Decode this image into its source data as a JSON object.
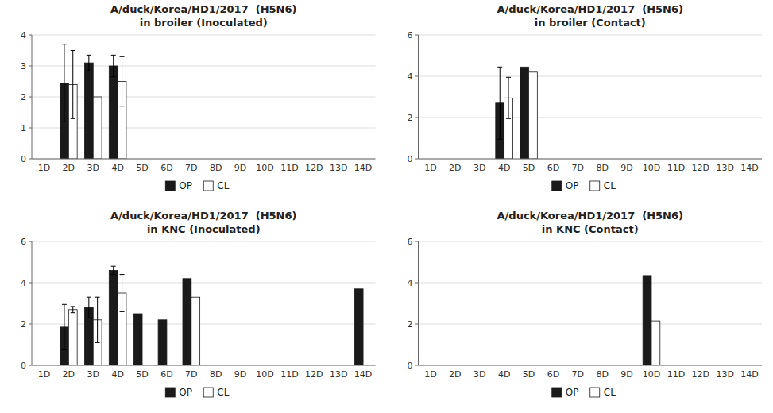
{
  "chart_data": [
    {
      "type": "bar",
      "title": "A/duck/Korea/HD1/2017  (H5N6)",
      "subtitle": "in broiler (Inoculated)",
      "categories": [
        "1D",
        "2D",
        "3D",
        "4D",
        "5D",
        "6D",
        "7D",
        "8D",
        "9D",
        "10D",
        "11D",
        "12D",
        "13D",
        "14D"
      ],
      "series": [
        {
          "name": "OP",
          "color": "#1a1a1a",
          "values": [
            0,
            2.45,
            3.1,
            3.0,
            0,
            0,
            0,
            0,
            0,
            0,
            0,
            0,
            0,
            0
          ],
          "errors": [
            0,
            1.25,
            0.25,
            0.35,
            0,
            0,
            0,
            0,
            0,
            0,
            0,
            0,
            0,
            0
          ]
        },
        {
          "name": "CL",
          "color": "#ffffff",
          "values": [
            0,
            2.4,
            2.0,
            2.5,
            0,
            0,
            0,
            0,
            0,
            0,
            0,
            0,
            0,
            0
          ],
          "errors": [
            0,
            1.1,
            0.0,
            0.8,
            0,
            0,
            0,
            0,
            0,
            0,
            0,
            0,
            0,
            0
          ]
        }
      ],
      "ylim": [
        0,
        4
      ],
      "yticks": [
        0,
        1,
        2,
        3,
        4
      ],
      "grid": true,
      "legend": "bottom"
    },
    {
      "type": "bar",
      "title": "A/duck/Korea/HD1/2017  (H5N6)",
      "subtitle": "in broiler (Contact)",
      "categories": [
        "1D",
        "2D",
        "3D",
        "4D",
        "5D",
        "6D",
        "7D",
        "8D",
        "9D",
        "10D",
        "11D",
        "12D",
        "13D",
        "14D"
      ],
      "series": [
        {
          "name": "OP",
          "color": "#1a1a1a",
          "values": [
            0,
            0,
            0,
            2.7,
            4.45,
            0,
            0,
            0,
            0,
            0,
            0,
            0,
            0,
            0
          ],
          "errors": [
            0,
            0,
            0,
            1.75,
            0.0,
            0,
            0,
            0,
            0,
            0,
            0,
            0,
            0,
            0
          ]
        },
        {
          "name": "CL",
          "color": "#ffffff",
          "values": [
            0,
            0,
            0,
            2.95,
            4.2,
            0,
            0,
            0,
            0,
            0,
            0,
            0,
            0,
            0
          ],
          "errors": [
            0,
            0,
            0,
            1.0,
            0.0,
            0,
            0,
            0,
            0,
            0,
            0,
            0,
            0,
            0
          ]
        }
      ],
      "ylim": [
        0,
        6
      ],
      "yticks": [
        0,
        2,
        4,
        6
      ],
      "grid": true,
      "legend": "bottom"
    },
    {
      "type": "bar",
      "title": "A/duck/Korea/HD1/2017  (H5N6)",
      "subtitle": "in KNC (Inoculated)",
      "categories": [
        "1D",
        "2D",
        "3D",
        "4D",
        "5D",
        "6D",
        "7D",
        "8D",
        "9D",
        "10D",
        "11D",
        "12D",
        "13D",
        "14D"
      ],
      "series": [
        {
          "name": "OP",
          "color": "#1a1a1a",
          "values": [
            0,
            1.85,
            2.8,
            4.6,
            2.5,
            2.2,
            4.2,
            0,
            0,
            0,
            0,
            0,
            0,
            3.7
          ],
          "errors": [
            0,
            1.1,
            0.5,
            0.2,
            0,
            0,
            0,
            0,
            0,
            0,
            0,
            0,
            0,
            0
          ]
        },
        {
          "name": "CL",
          "color": "#ffffff",
          "values": [
            0,
            2.7,
            2.2,
            3.5,
            0,
            0,
            3.3,
            0,
            0,
            0,
            0,
            0,
            0,
            0
          ],
          "errors": [
            0,
            0.15,
            1.1,
            0.9,
            0,
            0,
            0,
            0,
            0,
            0,
            0,
            0,
            0,
            0
          ]
        }
      ],
      "ylim": [
        0,
        6
      ],
      "yticks": [
        0,
        2,
        4,
        6
      ],
      "grid": true,
      "legend": "bottom"
    },
    {
      "type": "bar",
      "title": "A/duck/Korea/HD1/2017  (H5N6)",
      "subtitle": "in KNC (Contact)",
      "categories": [
        "1D",
        "2D",
        "3D",
        "4D",
        "5D",
        "6D",
        "7D",
        "8D",
        "9D",
        "10D",
        "11D",
        "12D",
        "13D",
        "14D"
      ],
      "series": [
        {
          "name": "OP",
          "color": "#1a1a1a",
          "values": [
            0,
            0,
            0,
            0,
            0,
            0,
            0,
            0,
            0,
            4.35,
            0,
            0,
            0,
            0
          ],
          "errors": [
            0,
            0,
            0,
            0,
            0,
            0,
            0,
            0,
            0,
            0,
            0,
            0,
            0,
            0
          ]
        },
        {
          "name": "CL",
          "color": "#ffffff",
          "values": [
            0,
            0,
            0,
            0,
            0,
            0,
            0,
            0,
            0,
            2.15,
            0,
            0,
            0,
            0
          ],
          "errors": [
            0,
            0,
            0,
            0,
            0,
            0,
            0,
            0,
            0,
            0,
            0,
            0,
            0,
            0
          ]
        }
      ],
      "ylim": [
        0,
        6
      ],
      "yticks": [
        0,
        2,
        4,
        6
      ],
      "grid": true,
      "legend": "bottom"
    }
  ]
}
